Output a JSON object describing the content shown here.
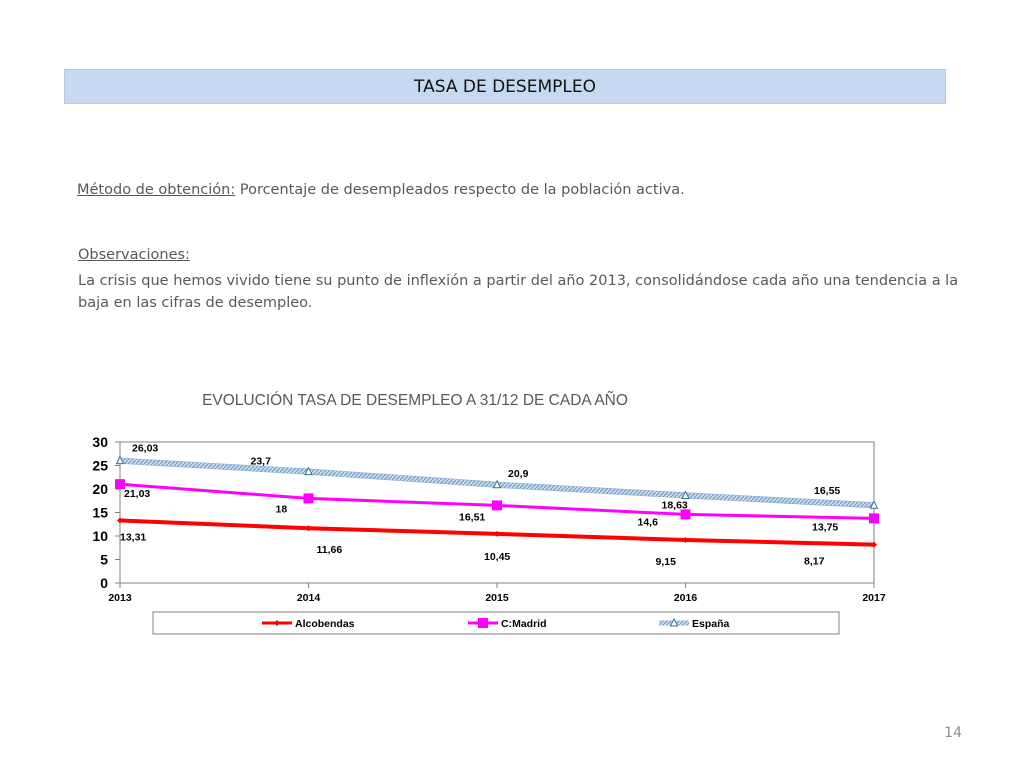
{
  "slide": {
    "title": "TASA DE DESEMPLEO",
    "method_label": "Método de obtención:",
    "method_text": " Porcentaje de desempleados respecto de la población activa.",
    "observations_heading": "Observaciones:",
    "observations_text": "La crisis que hemos vivido tiene su punto de inflexión a partir del año 2013, consolidándose cada año una tendencia a la baja en las cifras de desempleo.",
    "page_number": "14"
  },
  "chart_data": {
    "type": "line",
    "title": "EVOLUCIÓN TASA DE DESEMPLEO A  31/12  DE CADA AÑO",
    "x": [
      "2013",
      "2014",
      "2015",
      "2016",
      "2017"
    ],
    "ylim": [
      0,
      30
    ],
    "yticks": [
      0,
      5,
      10,
      15,
      20,
      25,
      30
    ],
    "grid": false,
    "legend_position": "bottom",
    "series": [
      {
        "name": "Alcobendas",
        "color": "#ff0000",
        "marker": "diamond",
        "values": [
          13.31,
          11.66,
          10.45,
          9.15,
          8.17
        ],
        "labels": [
          "13,31",
          "11,66",
          "10,45",
          "9,15",
          "8,17"
        ]
      },
      {
        "name": "C:Madrid",
        "color": "#ff00ff",
        "marker": "square",
        "values": [
          21.03,
          18,
          16.51,
          14.6,
          13.75
        ],
        "labels": [
          "21,03",
          "18",
          "16,51",
          "14,6",
          "13,75"
        ]
      },
      {
        "name": "España",
        "color": "#8eb4e3",
        "marker": "triangle",
        "values": [
          26.03,
          23.7,
          20.9,
          18.63,
          16.55
        ],
        "labels": [
          "26,03",
          "23,7",
          "20,9",
          "18,63",
          "16,55"
        ]
      }
    ]
  }
}
